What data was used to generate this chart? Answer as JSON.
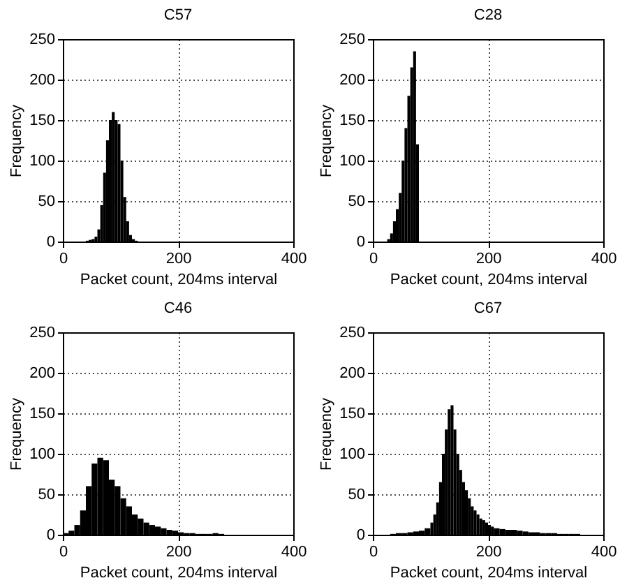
{
  "chart_data": [
    {
      "type": "histogram",
      "title": "C57",
      "xlabel": "Packet count, 204ms interval",
      "ylabel": "Frequency",
      "color": "#000000",
      "grid": true,
      "xlim": [
        0,
        400
      ],
      "xticks": [
        0,
        200,
        400
      ],
      "ylim": [
        0,
        250
      ],
      "yticks": [
        0,
        50,
        100,
        150,
        200,
        250
      ],
      "bins": [
        40,
        45,
        50,
        55,
        60,
        65,
        70,
        75,
        80,
        85,
        90,
        95,
        100,
        105,
        110,
        115,
        120,
        125,
        130
      ],
      "values": [
        1,
        2,
        3,
        6,
        15,
        45,
        85,
        125,
        150,
        160,
        150,
        145,
        100,
        55,
        25,
        8,
        3,
        1
      ]
    },
    {
      "type": "histogram",
      "title": "C28",
      "xlabel": "Packet count, 204ms interval",
      "ylabel": "Frequency",
      "color": "#000000",
      "grid": true,
      "xlim": [
        0,
        400
      ],
      "xticks": [
        0,
        200,
        400
      ],
      "ylim": [
        0,
        250
      ],
      "yticks": [
        0,
        50,
        100,
        150,
        200,
        250
      ],
      "bins": [
        25,
        30,
        35,
        40,
        45,
        50,
        55,
        60,
        65,
        70,
        75,
        80
      ],
      "values": [
        3,
        10,
        25,
        40,
        60,
        100,
        140,
        180,
        215,
        235,
        120
      ]
    },
    {
      "type": "histogram",
      "title": "C46",
      "xlabel": "Packet count, 204ms interval",
      "ylabel": "Frequency",
      "color": "#000000",
      "grid": true,
      "xlim": [
        0,
        400
      ],
      "xticks": [
        0,
        200,
        400
      ],
      "ylim": [
        0,
        250
      ],
      "yticks": [
        0,
        50,
        100,
        150,
        200,
        250
      ],
      "bins": [
        0,
        10,
        20,
        30,
        40,
        50,
        60,
        70,
        80,
        90,
        100,
        110,
        120,
        130,
        140,
        150,
        160,
        170,
        180,
        190,
        200,
        210,
        220,
        230,
        240,
        250,
        260,
        270,
        280
      ],
      "values": [
        2,
        5,
        12,
        30,
        60,
        88,
        95,
        92,
        68,
        60,
        45,
        35,
        25,
        20,
        15,
        12,
        10,
        8,
        6,
        5,
        3,
        2,
        2,
        1,
        1,
        1,
        2,
        1
      ]
    },
    {
      "type": "histogram",
      "title": "C67",
      "xlabel": "Packet count, 204ms interval",
      "ylabel": "Frequency",
      "color": "#000000",
      "grid": true,
      "xlim": [
        0,
        400
      ],
      "xticks": [
        0,
        200,
        400
      ],
      "ylim": [
        0,
        250
      ],
      "yticks": [
        0,
        50,
        100,
        150,
        200,
        250
      ],
      "bins": [
        30,
        40,
        50,
        60,
        70,
        80,
        90,
        100,
        105,
        110,
        115,
        120,
        125,
        130,
        135,
        140,
        145,
        150,
        155,
        160,
        165,
        170,
        175,
        180,
        185,
        190,
        195,
        200,
        205,
        210,
        220,
        230,
        240,
        250,
        260,
        270,
        280,
        290,
        300,
        310,
        320,
        330,
        340,
        350,
        360
      ],
      "values": [
        1,
        2,
        2,
        3,
        4,
        5,
        8,
        15,
        25,
        40,
        65,
        100,
        130,
        155,
        160,
        130,
        100,
        80,
        65,
        55,
        45,
        35,
        30,
        25,
        20,
        18,
        15,
        12,
        10,
        8,
        7,
        6,
        6,
        5,
        4,
        3,
        3,
        2,
        2,
        2,
        1,
        1,
        1,
        1
      ]
    }
  ]
}
